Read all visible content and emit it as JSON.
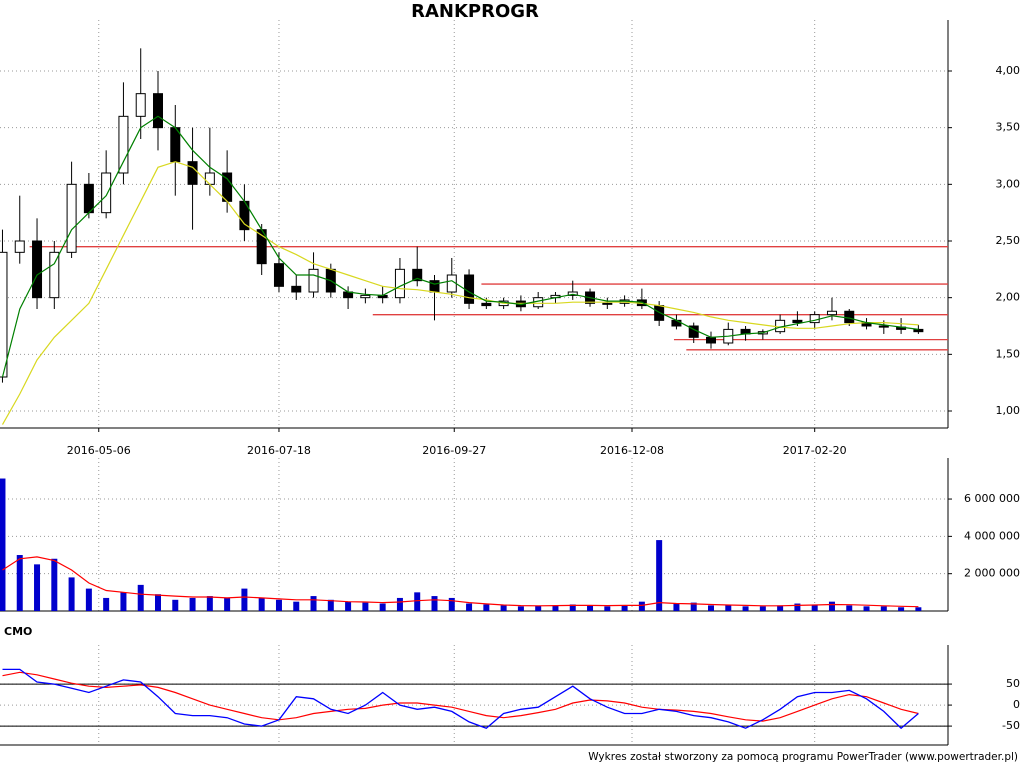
{
  "chart_data": {
    "type": "stock",
    "title": "RANKPROGR",
    "x": [
      "2016-03-28",
      "2016-04-04",
      "2016-04-11",
      "2016-04-18",
      "2016-04-25",
      "2016-05-02",
      "2016-05-09",
      "2016-05-16",
      "2016-05-23",
      "2016-05-30",
      "2016-06-06",
      "2016-06-13",
      "2016-06-20",
      "2016-06-27",
      "2016-07-04",
      "2016-07-11",
      "2016-07-18",
      "2016-07-25",
      "2016-08-01",
      "2016-08-08",
      "2016-08-15",
      "2016-08-22",
      "2016-08-29",
      "2016-09-05",
      "2016-09-12",
      "2016-09-19",
      "2016-09-26",
      "2016-10-03",
      "2016-10-10",
      "2016-10-17",
      "2016-10-24",
      "2016-10-31",
      "2016-11-07",
      "2016-11-14",
      "2016-11-21",
      "2016-11-28",
      "2016-12-05",
      "2016-12-12",
      "2016-12-19",
      "2016-12-26",
      "2017-01-02",
      "2017-01-09",
      "2017-01-16",
      "2017-01-23",
      "2017-01-30",
      "2017-02-06",
      "2017-02-13",
      "2017-02-20",
      "2017-02-27",
      "2017-03-06",
      "2017-03-13",
      "2017-03-20",
      "2017-03-27",
      "2017-04-03"
    ],
    "xlim": [
      "2016-03-27",
      "2017-04-15"
    ],
    "xticks": [
      "2016-05-06",
      "2016-07-18",
      "2016-09-27",
      "2016-12-08",
      "2017-02-20"
    ],
    "grid": true,
    "open": [
      1.3,
      2.4,
      2.5,
      2.0,
      2.4,
      3.0,
      2.75,
      3.1,
      3.6,
      3.8,
      3.5,
      3.2,
      3.0,
      3.1,
      2.85,
      2.6,
      2.3,
      2.1,
      2.05,
      2.25,
      2.05,
      2.0,
      2.02,
      2.0,
      2.25,
      2.15,
      2.05,
      2.2,
      1.95,
      1.93,
      1.97,
      1.92,
      2.0,
      2.02,
      2.05,
      1.95,
      1.95,
      1.98,
      1.93,
      1.8,
      1.75,
      1.65,
      1.6,
      1.72,
      1.68,
      1.7,
      1.8,
      1.78,
      1.85,
      1.88,
      1.78,
      1.75,
      1.74,
      1.72
    ],
    "high": [
      2.6,
      2.9,
      2.7,
      2.5,
      3.2,
      3.1,
      3.3,
      3.9,
      4.2,
      4.0,
      3.7,
      3.5,
      3.5,
      3.3,
      3.0,
      2.65,
      2.4,
      2.2,
      2.4,
      2.3,
      2.1,
      2.08,
      2.1,
      2.35,
      2.45,
      2.2,
      2.35,
      2.25,
      2.0,
      2.0,
      2.02,
      2.05,
      2.05,
      2.15,
      2.08,
      2.0,
      2.02,
      2.08,
      1.97,
      1.85,
      1.78,
      1.7,
      1.78,
      1.75,
      1.72,
      1.85,
      1.88,
      1.88,
      2.0,
      1.9,
      1.82,
      1.8,
      1.82,
      1.76
    ],
    "low": [
      1.25,
      2.3,
      1.9,
      1.9,
      2.35,
      2.7,
      2.7,
      3.0,
      3.4,
      3.3,
      2.9,
      2.6,
      2.9,
      2.75,
      2.5,
      2.2,
      2.05,
      1.98,
      2.0,
      2.0,
      1.9,
      1.95,
      1.95,
      1.95,
      2.1,
      1.8,
      2.0,
      1.9,
      1.9,
      1.9,
      1.88,
      1.9,
      1.95,
      1.98,
      1.92,
      1.9,
      1.92,
      1.9,
      1.75,
      1.72,
      1.6,
      1.55,
      1.58,
      1.62,
      1.63,
      1.68,
      1.75,
      1.72,
      1.8,
      1.75,
      1.72,
      1.68,
      1.68,
      1.68
    ],
    "close": [
      2.4,
      2.5,
      2.0,
      2.4,
      3.0,
      2.75,
      3.1,
      3.6,
      3.8,
      3.5,
      3.2,
      3.0,
      3.1,
      2.85,
      2.6,
      2.3,
      2.1,
      2.05,
      2.25,
      2.05,
      2.0,
      2.02,
      2.0,
      2.25,
      2.15,
      2.05,
      2.2,
      1.95,
      1.93,
      1.97,
      1.92,
      2.0,
      2.02,
      2.05,
      1.95,
      1.95,
      1.98,
      1.93,
      1.8,
      1.75,
      1.65,
      1.6,
      1.72,
      1.68,
      1.7,
      1.8,
      1.78,
      1.85,
      1.88,
      1.78,
      1.75,
      1.74,
      1.72,
      1.7
    ],
    "ylim": [
      0.85,
      4.45
    ],
    "yticks": [
      {
        "value": 1,
        "label": "1,00"
      },
      {
        "value": 1.5,
        "label": "1,50"
      },
      {
        "value": 2,
        "label": "2,00"
      },
      {
        "value": 2.5,
        "label": "2,50"
      },
      {
        "value": 3,
        "label": "3,00"
      },
      {
        "value": 3.5,
        "label": "3,50"
      },
      {
        "value": 4,
        "label": "4,00"
      }
    ],
    "series": [
      {
        "color": "#d8d820",
        "values": [
          0.88,
          1.15,
          1.45,
          1.65,
          1.8,
          1.95,
          2.25,
          2.55,
          2.85,
          3.15,
          3.2,
          3.15,
          3.0,
          2.85,
          2.65,
          2.55,
          2.45,
          2.38,
          2.3,
          2.25,
          2.2,
          2.15,
          2.1,
          2.08,
          2.07,
          2.05,
          2.03,
          2.0,
          1.98,
          1.95,
          1.95,
          1.95,
          1.95,
          1.96,
          1.96,
          1.96,
          1.96,
          1.95,
          1.93,
          1.9,
          1.87,
          1.83,
          1.8,
          1.78,
          1.76,
          1.74,
          1.73,
          1.73,
          1.75,
          1.77,
          1.78,
          1.78,
          1.77,
          1.76
        ]
      },
      {
        "color": "#008000",
        "values": [
          1.3,
          1.9,
          2.2,
          2.3,
          2.6,
          2.75,
          2.9,
          3.2,
          3.5,
          3.6,
          3.5,
          3.3,
          3.15,
          3.05,
          2.85,
          2.6,
          2.35,
          2.2,
          2.2,
          2.15,
          2.05,
          2.03,
          2.02,
          2.1,
          2.17,
          2.12,
          2.15,
          2.05,
          1.97,
          1.96,
          1.94,
          1.97,
          2.0,
          2.03,
          2.0,
          1.97,
          1.97,
          1.96,
          1.87,
          1.8,
          1.72,
          1.65,
          1.66,
          1.68,
          1.69,
          1.74,
          1.77,
          1.8,
          1.84,
          1.82,
          1.78,
          1.76,
          1.74,
          1.72
        ]
      }
    ],
    "levels": {
      "color": "#e04040",
      "values": [
        2.45,
        2.12,
        1.85,
        1.63,
        1.54
      ],
      "start": [
        "2016-04-08",
        "2016-10-08",
        "2016-08-25",
        "2016-12-25",
        "2016-12-30"
      ]
    },
    "volume": {
      "color": "#0000cc",
      "values": [
        7100000,
        3000000,
        2500000,
        2800000,
        1800000,
        1200000,
        700000,
        1000000,
        1400000,
        900000,
        600000,
        700000,
        800000,
        700000,
        1200000,
        700000,
        600000,
        500000,
        800000,
        600000,
        500000,
        450000,
        400000,
        700000,
        1000000,
        800000,
        700000,
        400000,
        350000,
        300000,
        250000,
        280000,
        300000,
        350000,
        300000,
        250000,
        300000,
        500000,
        3800000,
        400000,
        450000,
        300000,
        300000,
        250000,
        250000,
        300000,
        400000,
        350000,
        500000,
        300000,
        250000,
        250000,
        200000,
        200000
      ],
      "average": {
        "color": "#ff0000",
        "values": [
          2200000,
          2800000,
          2900000,
          2700000,
          2200000,
          1500000,
          1100000,
          1000000,
          900000,
          850000,
          800000,
          750000,
          750000,
          700000,
          750000,
          700000,
          650000,
          600000,
          600000,
          550000,
          500000,
          480000,
          450000,
          480000,
          550000,
          600000,
          550000,
          450000,
          380000,
          320000,
          290000,
          280000,
          290000,
          300000,
          300000,
          290000,
          300000,
          300000,
          450000,
          400000,
          380000,
          350000,
          320000,
          300000,
          280000,
          280000,
          300000,
          320000,
          350000,
          340000,
          310000,
          280000,
          250000,
          230000
        ]
      },
      "ylim": [
        0,
        8200000
      ],
      "yticks": [
        {
          "value": 2000000,
          "label": "2 000 000"
        },
        {
          "value": 4000000,
          "label": "4 000 000"
        },
        {
          "value": 6000000,
          "label": "6 000 000"
        }
      ]
    },
    "cmo": {
      "title": "CMO",
      "color": "#0000ff",
      "values": [
        85,
        85,
        55,
        50,
        40,
        30,
        45,
        60,
        55,
        20,
        -20,
        -25,
        -25,
        -30,
        -45,
        -50,
        -35,
        20,
        15,
        -10,
        -20,
        0,
        30,
        0,
        -10,
        -5,
        -15,
        -40,
        -55,
        -20,
        -10,
        -5,
        20,
        45,
        15,
        -5,
        -20,
        -20,
        -10,
        -15,
        -25,
        -30,
        -40,
        -55,
        -35,
        -10,
        20,
        30,
        30,
        35,
        15,
        -15,
        -55,
        -20
      ],
      "average": {
        "color": "#ff0000",
        "values": [
          70,
          78,
          72,
          62,
          52,
          45,
          42,
          45,
          48,
          42,
          30,
          15,
          0,
          -10,
          -20,
          -30,
          -35,
          -30,
          -20,
          -15,
          -10,
          -8,
          0,
          5,
          5,
          0,
          -5,
          -15,
          -25,
          -30,
          -25,
          -18,
          -10,
          5,
          12,
          10,
          5,
          -5,
          -10,
          -12,
          -15,
          -20,
          -28,
          -35,
          -38,
          -30,
          -15,
          0,
          15,
          25,
          20,
          5,
          -10,
          -20
        ]
      },
      "ylim": [
        -95,
        143
      ],
      "yticks": [
        50,
        0,
        -50
      ],
      "levels": [
        50,
        -50
      ]
    },
    "footer": "Wykres został stworzony za pomocą programu PowerTrader (www.powertrader.pl)"
  }
}
